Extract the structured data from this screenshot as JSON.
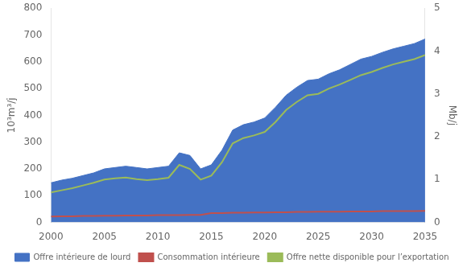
{
  "chart_data": {
    "type": "line",
    "x": [
      2000,
      2001,
      2002,
      2003,
      2004,
      2005,
      2006,
      2007,
      2008,
      2009,
      2010,
      2011,
      2012,
      2013,
      2014,
      2015,
      2016,
      2017,
      2018,
      2019,
      2020,
      2021,
      2022,
      2023,
      2024,
      2025,
      2026,
      2027,
      2028,
      2029,
      2030,
      2031,
      2032,
      2033,
      2034,
      2035
    ],
    "series": [
      {
        "name": "Offre intérieure de lourd",
        "type": "area",
        "color": "#4472c4",
        "values": [
          148,
          158,
          165,
          175,
          185,
          200,
          205,
          210,
          205,
          200,
          205,
          210,
          260,
          250,
          200,
          215,
          270,
          345,
          365,
          375,
          390,
          430,
          475,
          505,
          530,
          535,
          555,
          570,
          590,
          610,
          620,
          635,
          648,
          658,
          668,
          685
        ]
      },
      {
        "name": "Consommation intérieure",
        "type": "line",
        "color": "#c0504d",
        "values": [
          22,
          23,
          23,
          24,
          24,
          25,
          25,
          26,
          26,
          26,
          27,
          27,
          27,
          28,
          28,
          35,
          35,
          36,
          36,
          37,
          37,
          38,
          38,
          39,
          39,
          40,
          40,
          40,
          41,
          41,
          41,
          42,
          42,
          42,
          42,
          43
        ]
      },
      {
        "name": "Offre nette disponible pour l’exportation",
        "type": "line",
        "color": "#9bbb59",
        "values": [
          112,
          120,
          128,
          138,
          148,
          160,
          165,
          168,
          162,
          158,
          162,
          167,
          215,
          200,
          160,
          175,
          225,
          295,
          315,
          325,
          338,
          375,
          420,
          450,
          475,
          480,
          500,
          515,
          532,
          550,
          562,
          577,
          590,
          600,
          610,
          625
        ]
      }
    ],
    "xlim": [
      2000,
      2035
    ],
    "xticks": [
      2000,
      2005,
      2010,
      2015,
      2020,
      2025,
      2030,
      2035
    ],
    "ylabel": "10³m³/j",
    "ylim": [
      0,
      800
    ],
    "yticks": [
      0,
      100,
      200,
      300,
      400,
      500,
      600,
      700,
      800
    ],
    "y2label": "Mb/j",
    "y2lim": [
      0,
      5
    ],
    "y2ticks": [
      0,
      1,
      2,
      3,
      4,
      5
    ],
    "grid": false,
    "legend": "bottom"
  }
}
